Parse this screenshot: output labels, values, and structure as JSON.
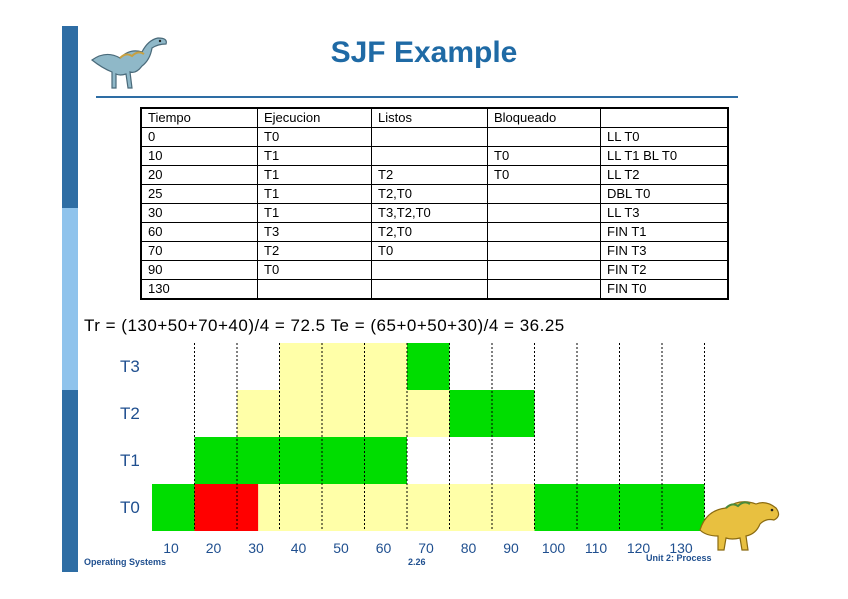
{
  "title": "SJF Example",
  "table": {
    "headers": [
      "Tiempo",
      "Ejecucion",
      "Listos",
      "Bloqueado",
      ""
    ],
    "rows": [
      [
        "0",
        "T0",
        "",
        "",
        "LL T0"
      ],
      [
        "10",
        "T1",
        "",
        "T0",
        "LL T1 BL T0"
      ],
      [
        "20",
        "T1",
        "T2",
        "T0",
        "LL T2"
      ],
      [
        "25",
        "T1",
        "T2,T0",
        "",
        "DBL T0"
      ],
      [
        "30",
        "T1",
        "T3,T2,T0",
        "",
        "LL T3"
      ],
      [
        "60",
        "T3",
        "T2,T0",
        "",
        "FIN T1"
      ],
      [
        "70",
        "T2",
        "T0",
        "",
        "FIN T3"
      ],
      [
        "90",
        "T0",
        "",
        "",
        "FIN T2"
      ],
      [
        "130",
        "",
        "",
        "",
        "FIN T0"
      ]
    ]
  },
  "formula": "Tr = (130+50+70+40)/4 = 72.5 Te = (65+0+50+30)/4 = 36.25",
  "chart_data": {
    "type": "gantt",
    "tasks": [
      "T0",
      "T1",
      "T2",
      "T3"
    ],
    "x_ticks": [
      "10",
      "20",
      "30",
      "40",
      "50",
      "60",
      "70",
      "80",
      "90",
      "100",
      "110",
      "120",
      "130"
    ],
    "segments": [
      {
        "task": "T0",
        "start": 0,
        "end": 10,
        "state": "running"
      },
      {
        "task": "T0",
        "start": 10,
        "end": 25,
        "state": "blocked"
      },
      {
        "task": "T0",
        "start": 25,
        "end": 90,
        "state": "ready"
      },
      {
        "task": "T0",
        "start": 90,
        "end": 130,
        "state": "running"
      },
      {
        "task": "T1",
        "start": 10,
        "end": 60,
        "state": "running"
      },
      {
        "task": "T2",
        "start": 20,
        "end": 70,
        "state": "ready"
      },
      {
        "task": "T2",
        "start": 70,
        "end": 90,
        "state": "running"
      },
      {
        "task": "T3",
        "start": 30,
        "end": 60,
        "state": "ready"
      },
      {
        "task": "T3",
        "start": 60,
        "end": 70,
        "state": "running"
      }
    ],
    "colors": {
      "running": "#00dd00",
      "ready": "#ffffa8",
      "blocked": "#ff0000"
    }
  },
  "footer": {
    "left": "Operating Systems",
    "center": "2.26",
    "right": "Unit 2: Process"
  }
}
